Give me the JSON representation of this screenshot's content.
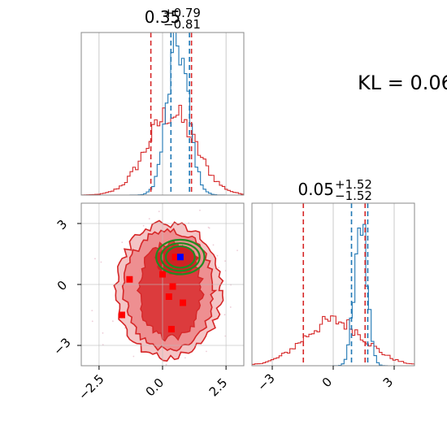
{
  "chart_data": [
    {
      "type": "histogram",
      "panel": "top-left",
      "title": {
        "main": "0.35",
        "sup": "+0.79",
        "sub": "−0.81"
      },
      "xlim": [
        -3.2,
        3.2
      ],
      "grid": true,
      "series": [
        {
          "name": "",
          "color": "#d62728",
          "peak": 0.55,
          "center": 0.35,
          "sd": 0.95
        },
        {
          "name": "",
          "color": "#1f77b4",
          "peak": 1.0,
          "center": 0.6,
          "sd": 0.42
        }
      ],
      "vlines": [
        {
          "x": -0.46,
          "color": "#d62728"
        },
        {
          "x": 1.14,
          "color": "#d62728"
        },
        {
          "x": 0.33,
          "color": "#1f77b4"
        },
        {
          "x": 1.06,
          "color": "#1f77b4"
        }
      ]
    },
    {
      "type": "histogram",
      "panel": "bottom-right",
      "title": {
        "main": "0.05",
        "sup": "+1.52",
        "sub": "−1.52"
      },
      "xlim": [
        -4,
        4
      ],
      "xticks": [
        -3,
        0,
        3
      ],
      "xtick_labels": [
        "−3",
        "0",
        "3"
      ],
      "grid": true,
      "series": [
        {
          "name": "",
          "color": "#d62728",
          "peak": 0.3,
          "center": 0.05,
          "sd": 1.5
        },
        {
          "name": "",
          "color": "#1f77b4",
          "peak": 1.0,
          "center": 1.35,
          "sd": 0.3
        }
      ],
      "vlines": [
        {
          "x": -1.47,
          "color": "#d62728"
        },
        {
          "x": 1.57,
          "color": "#d62728"
        },
        {
          "x": 0.9,
          "color": "#1f77b4"
        },
        {
          "x": 1.7,
          "color": "#1f77b4"
        }
      ]
    },
    {
      "type": "contour",
      "panel": "bottom-left",
      "xlim": [
        -3.2,
        3.2
      ],
      "ylim": [
        -4,
        4
      ],
      "xticks": [
        -2.5,
        0.0,
        2.5
      ],
      "xtick_labels": [
        "−2.5",
        "0.0",
        "2.5"
      ],
      "yticks": [
        -3,
        0,
        3
      ],
      "ytick_labels": [
        "−3",
        "0",
        "3"
      ],
      "grid": true,
      "red_points": [
        [
          -1.3,
          0.25
        ],
        [
          -1.6,
          -1.5
        ],
        [
          0.5,
          1.35
        ],
        [
          0.4,
          -0.1
        ],
        [
          0.25,
          -0.6
        ],
        [
          0.8,
          -0.9
        ],
        [
          0.35,
          -2.2
        ],
        [
          0.0,
          0.5
        ]
      ],
      "blue_point": [
        0.7,
        1.35
      ],
      "green_ellipse": {
        "cx": 0.7,
        "cy": 1.35,
        "rx": 0.95,
        "ry": 0.85
      }
    }
  ],
  "annotation": {
    "kl": "KL = 0.06"
  },
  "colors": {
    "red": "#d62728",
    "blue": "#1f77b4",
    "green": "#228b22",
    "grid": "#bdbdbd"
  }
}
